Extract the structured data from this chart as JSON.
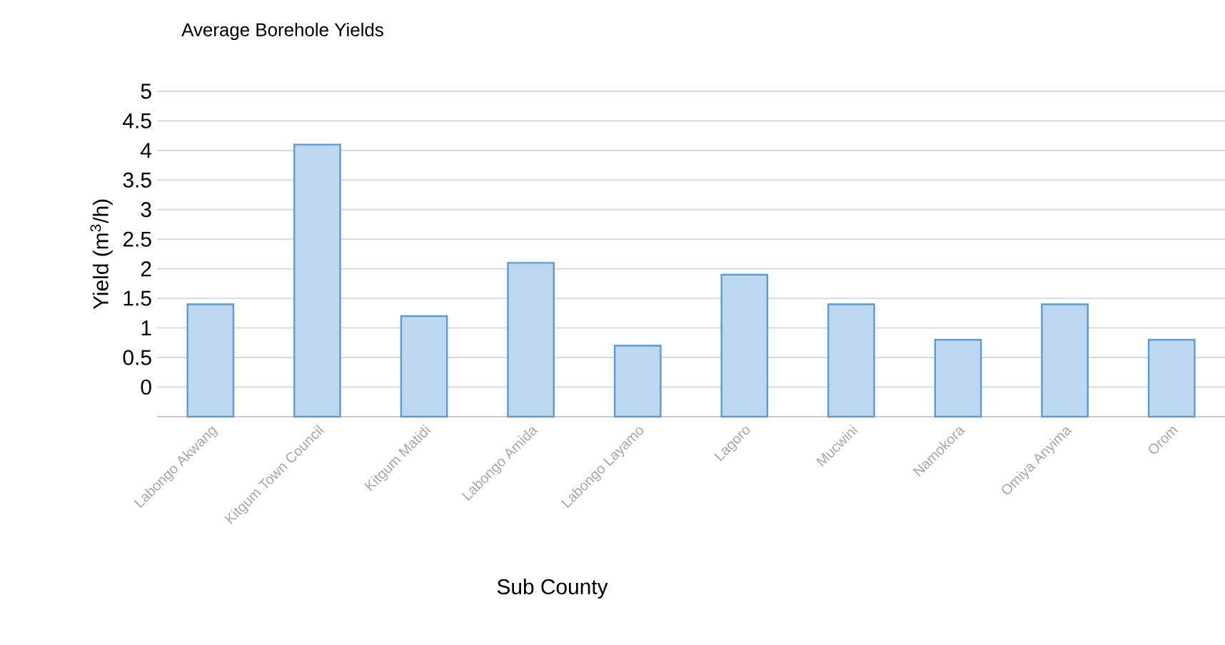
{
  "chart_data": {
    "type": "bar",
    "title": "Average Borehole Yields",
    "xlabel": "Sub County",
    "ylabel": "Yield (m$^{3}$/h)",
    "categories": [
      "Labongo Akwang",
      "Kitgum Town Council",
      "Kitgum Matidi",
      "Labongo Amida",
      "Labongo Layamo",
      "Lagoro",
      "Mucwini",
      "Namokora",
      "Omiya Anyima",
      "Orom"
    ],
    "base": [
      -0.5,
      -0.5,
      -0.5,
      -0.5,
      -0.5,
      -0.5,
      -0.5,
      -0.5,
      -0.5,
      -0.5
    ],
    "values": [
      1.9,
      4.6,
      1.7,
      2.6,
      1.2,
      2.4,
      1.9,
      1.3,
      1.9,
      1.3
    ],
    "color": "#5b9bd5",
    "ylim": [
      -0.5,
      5
    ],
    "yticks": [
      {
        "value": -0.5,
        "label": null
      },
      0,
      0.5,
      1,
      1.5,
      2,
      2.5,
      3,
      3.5,
      4,
      4.5,
      5
    ],
    "grid": "y"
  }
}
